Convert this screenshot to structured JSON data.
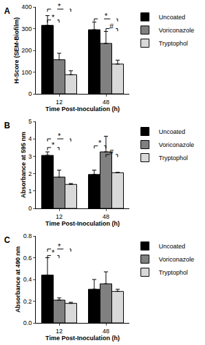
{
  "chart_data": [
    {
      "type": "bar",
      "panel_label": "A",
      "categories": [
        "12",
        "48"
      ],
      "x_label": "Time Post-Inoculation (h)",
      "y_label": "H-Score (SEM-Biofilm)",
      "ylim": [
        0,
        400
      ],
      "yticks": [
        0,
        100,
        200,
        300,
        400
      ],
      "legend": "top right",
      "series": [
        {
          "name": "Uncoated",
          "color": "#000000",
          "values": [
            315,
            295
          ],
          "errors": [
            45,
            35
          ]
        },
        {
          "name": "Voriconazole",
          "color": "#808080",
          "values": [
            157,
            232
          ],
          "errors": [
            30,
            55
          ]
        },
        {
          "name": "Tryptophol",
          "color": "#d9d9d9",
          "values": [
            88,
            137
          ],
          "errors": [
            18,
            18
          ]
        }
      ],
      "significance": [
        {
          "category": "12",
          "from": "Uncoated",
          "to": "Voriconazole",
          "label": "*",
          "y": 340
        },
        {
          "category": "12",
          "from": "Uncoated",
          "to": "Tryptophol",
          "label": "*",
          "y": 390
        },
        {
          "category": "48",
          "from": "Uncoated",
          "to": "Tryptophol",
          "label": "*",
          "y": 345
        },
        {
          "category": "48",
          "from": "Voriconazole",
          "to": "Tryptophol",
          "label": "#",
          "y": 300
        }
      ]
    },
    {
      "type": "bar",
      "panel_label": "B",
      "categories": [
        "12",
        "48"
      ],
      "x_label": "Time Post-Inoculation (h)",
      "y_label": "Absorbance at 595 nm",
      "ylim": [
        0,
        5
      ],
      "yticks": [
        0,
        1,
        2,
        3,
        4,
        5
      ],
      "legend": "top right",
      "series": [
        {
          "name": "Uncoated",
          "color": "#000000",
          "values": [
            3.05,
            1.95
          ],
          "errors": [
            0.2,
            0.25
          ]
        },
        {
          "name": "Voriconazole",
          "color": "#808080",
          "values": [
            1.8,
            3.25
          ],
          "errors": [
            0.4,
            0.9
          ]
        },
        {
          "name": "Tryptophol",
          "color": "#d9d9d9",
          "values": [
            1.38,
            2.05
          ],
          "errors": [
            0.05,
            0.02
          ]
        }
      ],
      "significance": [
        {
          "category": "12",
          "from": "Uncoated",
          "to": "Voriconazole",
          "label": "*",
          "y": 3.5
        },
        {
          "category": "12",
          "from": "Uncoated",
          "to": "Tryptophol",
          "label": "*",
          "y": 4.0
        },
        {
          "category": "48",
          "from": "Uncoated",
          "to": "Voriconazole",
          "label": "*",
          "y": 3.6
        },
        {
          "category": "48",
          "from": "Voriconazole",
          "to": "Tryptophol",
          "label": "#",
          "y": 3.1
        }
      ]
    },
    {
      "type": "bar",
      "panel_label": "C",
      "categories": [
        "12",
        "48"
      ],
      "x_label": "Time Post-Inoculation (h)",
      "y_label": "Absorbance at 490 nm",
      "ylim": [
        0,
        0.8
      ],
      "yticks": [
        {
          "value": 0,
          "label": "0.0"
        },
        0.2,
        0.4,
        0.6,
        0.8
      ],
      "legend": "top right",
      "series": [
        {
          "name": "Uncoated",
          "color": "#000000",
          "values": [
            0.44,
            0.31
          ],
          "errors": [
            0.16,
            0.09
          ]
        },
        {
          "name": "Voriconazole",
          "color": "#808080",
          "values": [
            0.21,
            0.36
          ],
          "errors": [
            0.02,
            0.11
          ]
        },
        {
          "name": "Tryptophol",
          "color": "#d9d9d9",
          "values": [
            0.18,
            0.29
          ],
          "errors": [
            0.01,
            0.02
          ]
        }
      ],
      "significance": [
        {
          "category": "12",
          "from": "Uncoated",
          "to": "Voriconazole",
          "label": "*",
          "y": 0.62
        },
        {
          "category": "12",
          "from": "Uncoated",
          "to": "Tryptophol",
          "label": "*",
          "y": 0.68
        }
      ]
    }
  ]
}
